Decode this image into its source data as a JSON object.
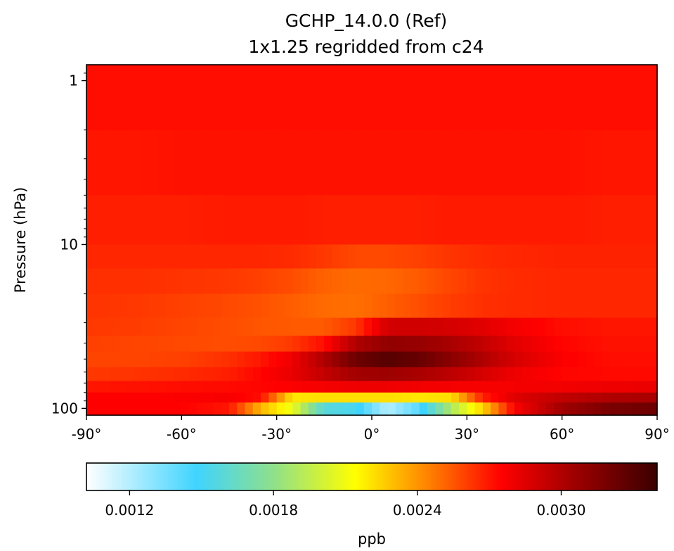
{
  "chart_data": {
    "type": "heatmap",
    "title": "GCHP_14.0.0 (Ref)",
    "subtitle": "1x1.25 regridded from c24",
    "xlabel": "",
    "ylabel": "Pressure (hPa)",
    "x_range": [
      -90,
      90
    ],
    "x_ticks": [
      -90,
      -60,
      -30,
      0,
      30,
      60,
      90
    ],
    "x_tick_labels": [
      "-90°",
      "-60°",
      "-30°",
      "0°",
      "30°",
      "60°",
      "90°"
    ],
    "y_scale": "log",
    "y_inverted": true,
    "y_range_hPa": [
      110,
      0.8
    ],
    "y_ticks": [
      1,
      10,
      100
    ],
    "y_tick_labels": [
      "1",
      "10",
      "100"
    ],
    "grid": false,
    "colormap": "WhGrYlRd-like (white → cyan → yellow → red → dark red)",
    "colorbar": {
      "label": "ppb",
      "orientation": "horizontal",
      "range": [
        0.00102,
        0.0034
      ],
      "ticks": [
        0.0012,
        0.0018,
        0.0024,
        0.003
      ],
      "tick_labels": [
        "0.0012",
        "0.0018",
        "0.0024",
        "0.0030"
      ],
      "stops": [
        {
          "value": 0.00102,
          "color": "#ffffff"
        },
        {
          "value": 0.00148,
          "color": "#3fd4ff"
        },
        {
          "value": 0.0018,
          "color": "#8fe08a"
        },
        {
          "value": 0.00214,
          "color": "#ffff00"
        },
        {
          "value": 0.00245,
          "color": "#ff8000"
        },
        {
          "value": 0.00275,
          "color": "#ff0000"
        },
        {
          "value": 0.00305,
          "color": "#a00000"
        },
        {
          "value": 0.0034,
          "color": "#3a0000"
        }
      ]
    },
    "latitudes": [
      -90,
      -75,
      -60,
      -45,
      -35,
      -25,
      -15,
      -5,
      5,
      15,
      25,
      35,
      45,
      60,
      75,
      90
    ],
    "levels": [
      {
        "p_top": 0.8,
        "p_bottom": 2.0,
        "values": [
          0.00272,
          0.00272,
          0.00272,
          0.00272,
          0.00272,
          0.00272,
          0.00272,
          0.00272,
          0.00272,
          0.00272,
          0.00272,
          0.00272,
          0.00272,
          0.00272,
          0.00272,
          0.00272
        ]
      },
      {
        "p_top": 2.0,
        "p_bottom": 5.0,
        "values": [
          0.0027,
          0.0027,
          0.00271,
          0.00271,
          0.00271,
          0.00271,
          0.00271,
          0.00271,
          0.00271,
          0.00271,
          0.00271,
          0.00271,
          0.00271,
          0.00271,
          0.0027,
          0.0027
        ]
      },
      {
        "p_top": 5.0,
        "p_bottom": 10.0,
        "values": [
          0.00268,
          0.00268,
          0.00268,
          0.00269,
          0.00269,
          0.00269,
          0.00268,
          0.00268,
          0.00268,
          0.00268,
          0.00269,
          0.00269,
          0.00269,
          0.00269,
          0.00268,
          0.00268
        ]
      },
      {
        "p_top": 10.0,
        "p_bottom": 14.0,
        "values": [
          0.00266,
          0.00266,
          0.00266,
          0.00266,
          0.00266,
          0.00265,
          0.00262,
          0.00258,
          0.00258,
          0.0026,
          0.00263,
          0.00265,
          0.00266,
          0.00267,
          0.00267,
          0.00267
        ]
      },
      {
        "p_top": 14.0,
        "p_bottom": 20.0,
        "values": [
          0.00264,
          0.00264,
          0.00263,
          0.00262,
          0.0026,
          0.00257,
          0.00252,
          0.0025,
          0.00251,
          0.00254,
          0.00259,
          0.00263,
          0.00265,
          0.00266,
          0.00266,
          0.00266
        ]
      },
      {
        "p_top": 20.0,
        "p_bottom": 28.0,
        "values": [
          0.00263,
          0.00262,
          0.0026,
          0.00258,
          0.00256,
          0.00253,
          0.0025,
          0.00249,
          0.00253,
          0.00257,
          0.00261,
          0.00264,
          0.00265,
          0.00266,
          0.00266,
          0.00266
        ]
      },
      {
        "p_top": 28.0,
        "p_bottom": 36.0,
        "values": [
          0.00262,
          0.00261,
          0.00259,
          0.00257,
          0.00255,
          0.00254,
          0.00254,
          0.00262,
          0.00289,
          0.0029,
          0.00288,
          0.00284,
          0.00278,
          0.00272,
          0.0027,
          0.0027
        ]
      },
      {
        "p_top": 36.0,
        "p_bottom": 45.0,
        "values": [
          0.0026,
          0.00259,
          0.00258,
          0.00257,
          0.00258,
          0.00262,
          0.00272,
          0.003,
          0.0031,
          0.00308,
          0.00302,
          0.00294,
          0.00284,
          0.00274,
          0.00271,
          0.00271
        ]
      },
      {
        "p_top": 45.0,
        "p_bottom": 56.0,
        "values": [
          0.00259,
          0.00259,
          0.0026,
          0.00264,
          0.0027,
          0.0028,
          0.003,
          0.00322,
          0.0033,
          0.00324,
          0.00312,
          0.003,
          0.00288,
          0.00276,
          0.00272,
          0.00272
        ]
      },
      {
        "p_top": 56.0,
        "p_bottom": 68.0,
        "values": [
          0.00262,
          0.00263,
          0.00265,
          0.00268,
          0.00274,
          0.00282,
          0.00294,
          0.00304,
          0.00306,
          0.00302,
          0.00296,
          0.00288,
          0.0028,
          0.00274,
          0.00273,
          0.00273
        ]
      },
      {
        "p_top": 68.0,
        "p_bottom": 80.0,
        "values": [
          0.0027,
          0.00271,
          0.00272,
          0.00273,
          0.00274,
          0.00276,
          0.00278,
          0.0028,
          0.0028,
          0.00279,
          0.00278,
          0.00278,
          0.00278,
          0.00279,
          0.0028,
          0.00281
        ]
      },
      {
        "p_top": 80.0,
        "p_bottom": 92.0,
        "values": [
          0.00275,
          0.00275,
          0.00276,
          0.00277,
          0.00272,
          0.0022,
          0.00222,
          0.00222,
          0.00222,
          0.0022,
          0.00222,
          0.00268,
          0.00285,
          0.00295,
          0.003,
          0.00302
        ]
      },
      {
        "p_top": 92.0,
        "p_bottom": 110.0,
        "values": [
          0.00275,
          0.00275,
          0.00275,
          0.0027,
          0.00232,
          0.00208,
          0.00158,
          0.00152,
          0.0012,
          0.00142,
          0.0019,
          0.00225,
          0.00276,
          0.00305,
          0.00318,
          0.00322
        ]
      }
    ]
  }
}
